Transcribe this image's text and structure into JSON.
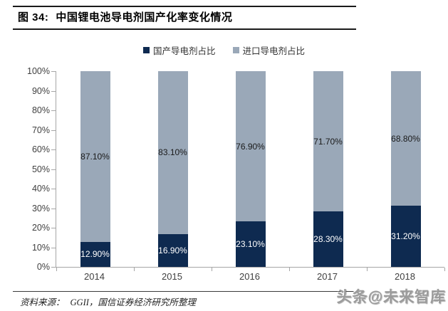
{
  "header": {
    "fig_label": "图 34:",
    "title": "中国锂电池导电剂国产化率变化情况"
  },
  "chart_data": {
    "type": "bar",
    "stacked": true,
    "title": "中国锂电池导电剂国产化率变化情况",
    "categories": [
      "2014",
      "2015",
      "2016",
      "2017",
      "2018"
    ],
    "series": [
      {
        "name": "国产导电剂占比",
        "color": "#0e2a50",
        "label_color": "#ffffff",
        "values": [
          12.9,
          16.9,
          23.1,
          28.3,
          31.2
        ],
        "labels": [
          "12.90%",
          "16.90%",
          "23.10%",
          "28.30%",
          "31.20%"
        ]
      },
      {
        "name": "进口导电剂占比",
        "color": "#9aa8b8",
        "label_color": "#1a1a1a",
        "values": [
          87.1,
          83.1,
          76.9,
          71.7,
          68.8
        ],
        "labels": [
          "87.10%",
          "83.10%",
          "76.90%",
          "71.70%",
          "68.80%"
        ]
      }
    ],
    "xlabel": "",
    "ylabel": "",
    "ylim": [
      0,
      100
    ],
    "y_ticks": [
      "0%",
      "10%",
      "20%",
      "30%",
      "40%",
      "50%",
      "60%",
      "70%",
      "80%",
      "90%",
      "100%"
    ],
    "grid": false,
    "legend_position": "top"
  },
  "footer": {
    "source_label": "资料来源：",
    "source_text": "GGII，国信证券经济研究所整理",
    "watermark": "头条@未来智库"
  }
}
